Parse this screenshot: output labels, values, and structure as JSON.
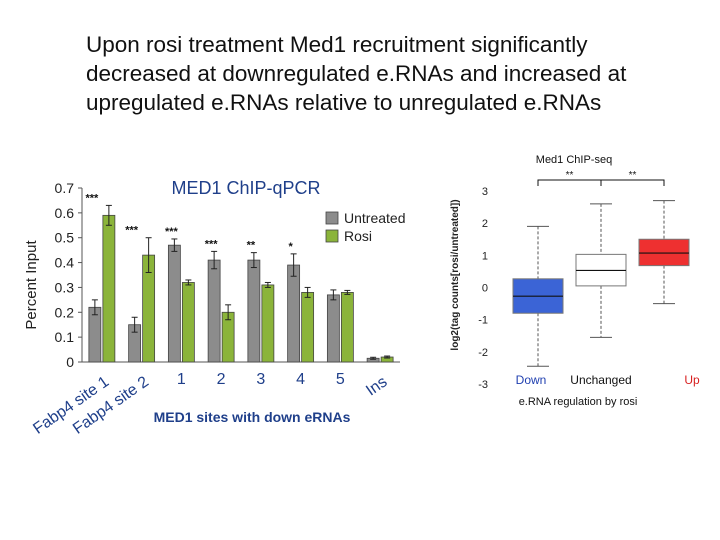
{
  "slide": {
    "title_lines": [
      "Upon rosi treatment Med1 recruitment significantly",
      "decreased at downregulated e.RNAs and increased at",
      "upregulated e.RNAs relative to unregulated e.RNAs"
    ]
  },
  "chart_data": [
    {
      "type": "bar",
      "title": "MED1 ChIP-qPCR",
      "ylabel": "Percent Input",
      "xlabel": "MED1 sites with down eRNAs",
      "ylim": [
        0,
        0.7
      ],
      "yticks": [
        "0",
        "0.1",
        "0.2",
        "0.3",
        "0.4",
        "0.5",
        "0.6",
        "0.7"
      ],
      "categories": [
        "Fabp4 site 1",
        "Fabp4 site 2",
        "1",
        "2",
        "3",
        "4",
        "5",
        "Ins"
      ],
      "series": [
        {
          "name": "Untreated",
          "color": "#8c8c8c",
          "values": [
            0.22,
            0.15,
            0.47,
            0.41,
            0.41,
            0.39,
            0.27,
            0.015
          ],
          "errors": [
            0.03,
            0.03,
            0.025,
            0.035,
            0.03,
            0.045,
            0.02,
            0.004
          ]
        },
        {
          "name": "Rosi",
          "color": "#8bb43a",
          "values": [
            0.59,
            0.43,
            0.32,
            0.2,
            0.31,
            0.28,
            0.28,
            0.02
          ],
          "errors": [
            0.04,
            0.07,
            0.01,
            0.03,
            0.01,
            0.02,
            0.008,
            0.004
          ]
        }
      ],
      "significance": [
        "***",
        "***",
        "***",
        "***",
        "**",
        "*",
        "",
        ""
      ],
      "legend_position": "right",
      "grid": false
    },
    {
      "type": "box",
      "title": "Med1 ChIP-seq",
      "ylabel": "log2(tag counts[rosi/untreated])",
      "xlabel": "e.RNA regulation by rosi",
      "ylim": [
        -3,
        3
      ],
      "yticks": [
        "3",
        "2",
        "1",
        "0",
        "-1",
        "-2",
        "-3"
      ],
      "categories": [
        "Down",
        "Unchanged",
        "Up"
      ],
      "colors": [
        "#3b64d6",
        "#ffffff",
        "#ee3030"
      ],
      "label_colors": [
        "#1f3fb0",
        "#111111",
        "#d82020"
      ],
      "boxes": [
        {
          "whisker_low": -2.45,
          "q1": -0.8,
          "median": -0.27,
          "q3": 0.27,
          "whisker_high": 1.9
        },
        {
          "whisker_low": -1.55,
          "q1": 0.05,
          "median": 0.53,
          "q3": 1.03,
          "whisker_high": 2.6
        },
        {
          "whisker_low": -0.5,
          "q1": 0.68,
          "median": 1.07,
          "q3": 1.5,
          "whisker_high": 2.7
        }
      ],
      "significance": [
        {
          "between": [
            0,
            1
          ],
          "label": "**"
        },
        {
          "between": [
            1,
            2
          ],
          "label": "**"
        }
      ],
      "grid": false
    }
  ]
}
